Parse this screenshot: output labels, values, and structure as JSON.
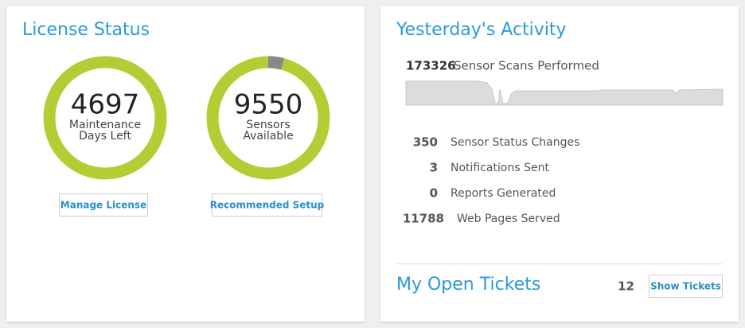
{
  "license_status": {
    "title": "License Status",
    "gauges": [
      {
        "value": 4697,
        "label_lines": [
          "Maintenance",
          "Days Left"
        ]
      },
      {
        "value": 9550,
        "label_lines": [
          "Sensors",
          "Available"
        ]
      }
    ],
    "buttons": [
      "Manage License",
      "Recommended Setup"
    ]
  },
  "yesterdays_activity": {
    "title": "Yesterday's Activity",
    "headline": {
      "value": 173326,
      "label": "Sensor Scans Performed"
    },
    "stats": [
      {
        "value": 350,
        "label": "Sensor Status Changes"
      },
      {
        "value": 3,
        "label": "Notifications Sent"
      },
      {
        "value": 0,
        "label": "Reports Generated"
      },
      {
        "value": 11788,
        "label": "Web Pages Served"
      }
    ]
  },
  "open_tickets": {
    "title": "My Open Tickets",
    "count": 12,
    "button": "Show Tickets"
  }
}
